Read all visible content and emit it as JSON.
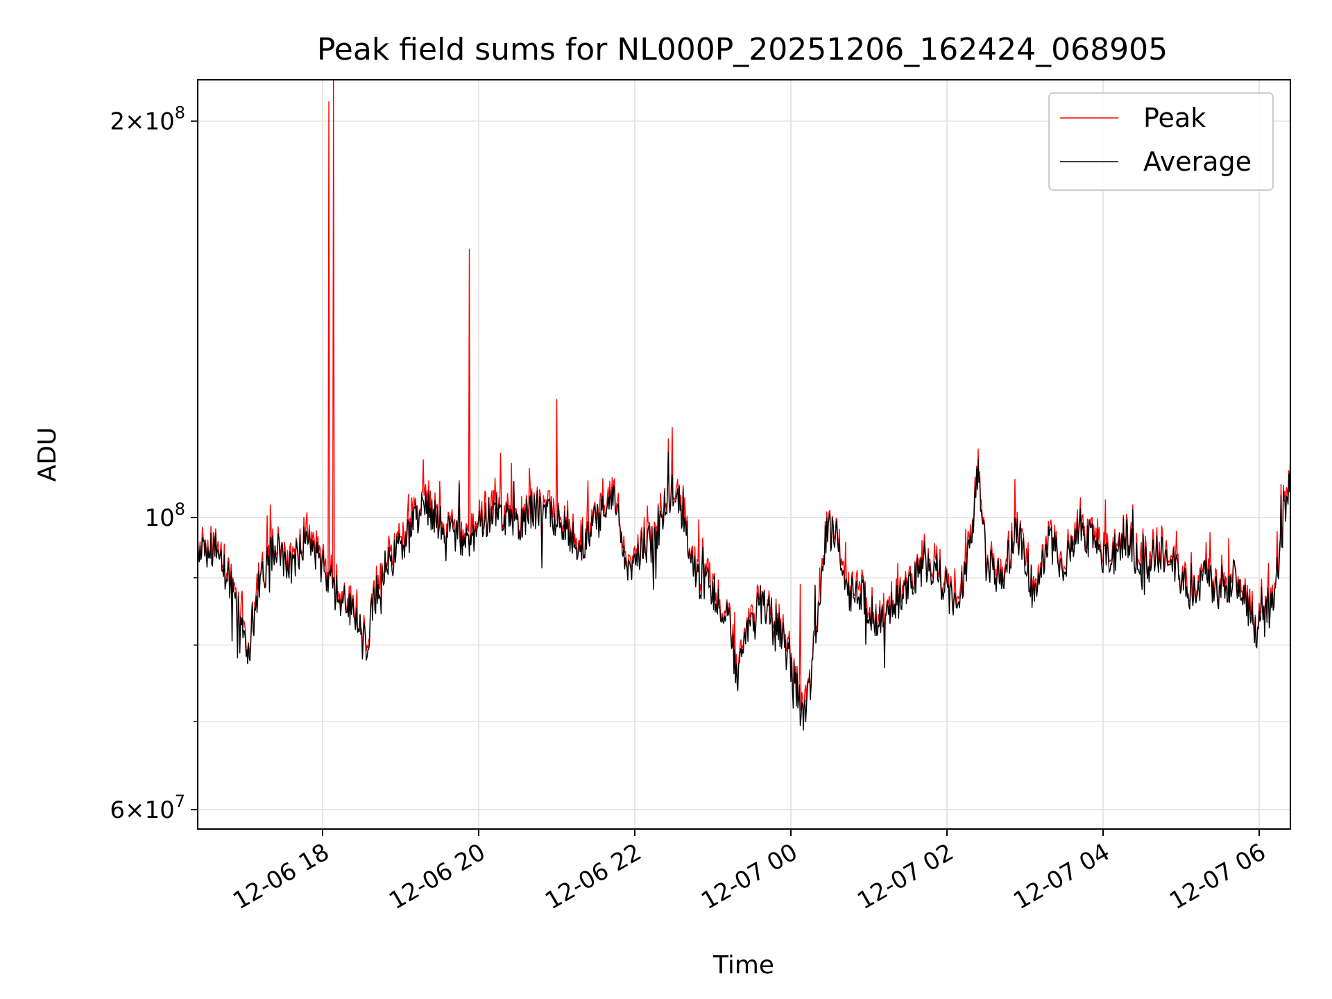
{
  "chart_data": {
    "type": "line",
    "title": "Peak field sums for NL000P_20251206_162424_068905",
    "xlabel": "Time",
    "ylabel": "ADU",
    "yscale": "log",
    "x_range_hours": [
      16.4,
      30.4
    ],
    "ylim": [
      58000000,
      215000000
    ],
    "grid": true,
    "legend_position": "top-right",
    "x_ticks": [
      {
        "hour": 18,
        "label": "12-06 18"
      },
      {
        "hour": 20,
        "label": "12-06 20"
      },
      {
        "hour": 22,
        "label": "12-06 22"
      },
      {
        "hour": 24,
        "label": "12-07 00"
      },
      {
        "hour": 26,
        "label": "12-07 02"
      },
      {
        "hour": 28,
        "label": "12-07 04"
      },
      {
        "hour": 30,
        "label": "12-07 06"
      }
    ],
    "y_major_ticks": [
      {
        "value": 60000000,
        "base": "6",
        "exp": "7"
      },
      {
        "value": 100000000,
        "base": "",
        "exp": "8"
      },
      {
        "value": 200000000,
        "base": "2",
        "exp": "8"
      }
    ],
    "y_minor_ticks": [
      70000000,
      80000000,
      90000000
    ],
    "series": [
      {
        "name": "Peak",
        "color": "#ff0000",
        "spikes": [
          {
            "hour": 18.08,
            "value": 207000000
          },
          {
            "hour": 18.14,
            "value": 215000000
          },
          {
            "hour": 19.88,
            "value": 160000000
          },
          {
            "hour": 21.0,
            "value": 123000000
          },
          {
            "hour": 20.28,
            "value": 112000000
          },
          {
            "hour": 24.12,
            "value": 89000000
          },
          {
            "hour": 30.42,
            "value": 112000000
          }
        ]
      },
      {
        "name": "Average",
        "color": "#000000",
        "anchors": [
          [
            16.4,
            93000000
          ],
          [
            16.6,
            95000000
          ],
          [
            16.8,
            90000000
          ],
          [
            16.95,
            84000000
          ],
          [
            17.05,
            78000000
          ],
          [
            17.2,
            90000000
          ],
          [
            17.4,
            95000000
          ],
          [
            17.6,
            92000000
          ],
          [
            17.8,
            96000000
          ],
          [
            18.0,
            92000000
          ],
          [
            18.15,
            88000000
          ],
          [
            18.3,
            86000000
          ],
          [
            18.45,
            84000000
          ],
          [
            18.55,
            80000000
          ],
          [
            18.7,
            88000000
          ],
          [
            18.8,
            92000000
          ],
          [
            18.95,
            94000000
          ],
          [
            19.1,
            97000000
          ],
          [
            19.3,
            102000000
          ],
          [
            19.5,
            99000000
          ],
          [
            19.7,
            97000000
          ],
          [
            19.9,
            96000000
          ],
          [
            20.1,
            100000000
          ],
          [
            20.3,
            101000000
          ],
          [
            20.5,
            98000000
          ],
          [
            20.7,
            102000000
          ],
          [
            20.9,
            100000000
          ],
          [
            21.1,
            99000000
          ],
          [
            21.3,
            95000000
          ],
          [
            21.5,
            99000000
          ],
          [
            21.7,
            104000000
          ],
          [
            21.8,
            100000000
          ],
          [
            21.9,
            90000000
          ],
          [
            22.1,
            95000000
          ],
          [
            22.3,
            96000000
          ],
          [
            22.4,
            104000000
          ],
          [
            22.55,
            105000000
          ],
          [
            22.7,
            95000000
          ],
          [
            22.8,
            90000000
          ],
          [
            23.0,
            88000000
          ],
          [
            23.2,
            84000000
          ],
          [
            23.32,
            75000000
          ],
          [
            23.45,
            82000000
          ],
          [
            23.6,
            86000000
          ],
          [
            23.8,
            84000000
          ],
          [
            23.95,
            80000000
          ],
          [
            24.1,
            73000000
          ],
          [
            24.15,
            70000000
          ],
          [
            24.25,
            75000000
          ],
          [
            24.35,
            85000000
          ],
          [
            24.45,
            98000000
          ],
          [
            24.6,
            97000000
          ],
          [
            24.7,
            87000000
          ],
          [
            24.9,
            88000000
          ],
          [
            25.1,
            83000000
          ],
          [
            25.3,
            86000000
          ],
          [
            25.5,
            88000000
          ],
          [
            25.7,
            92000000
          ],
          [
            25.9,
            90000000
          ],
          [
            26.1,
            86000000
          ],
          [
            26.3,
            94000000
          ],
          [
            26.4,
            110000000
          ],
          [
            26.5,
            92000000
          ],
          [
            26.7,
            90000000
          ],
          [
            26.9,
            98000000
          ],
          [
            27.1,
            88000000
          ],
          [
            27.3,
            96000000
          ],
          [
            27.5,
            92000000
          ],
          [
            27.7,
            99000000
          ],
          [
            27.9,
            95000000
          ],
          [
            28.1,
            93000000
          ],
          [
            28.3,
            97000000
          ],
          [
            28.5,
            91000000
          ],
          [
            28.7,
            94000000
          ],
          [
            28.9,
            92000000
          ],
          [
            29.1,
            88000000
          ],
          [
            29.3,
            90000000
          ],
          [
            29.5,
            88000000
          ],
          [
            29.7,
            90000000
          ],
          [
            29.85,
            86000000
          ],
          [
            29.95,
            82000000
          ],
          [
            30.1,
            86000000
          ],
          [
            30.2,
            88000000
          ],
          [
            30.3,
            98000000
          ],
          [
            30.4,
            108000000
          ]
        ]
      }
    ]
  }
}
